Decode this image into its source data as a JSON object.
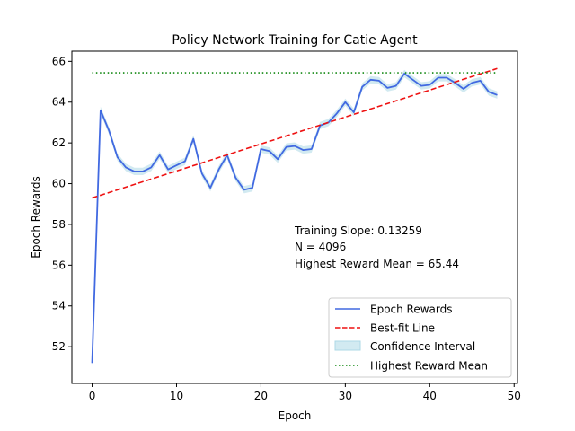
{
  "chart_data": {
    "type": "line",
    "title": "Policy Network Training for Catie Agent",
    "xlabel": "Epoch",
    "ylabel": "Epoch Rewards",
    "xlim": [
      -2.4,
      50.4
    ],
    "ylim": [
      50.2,
      66.5
    ],
    "xticks": [
      0,
      10,
      20,
      30,
      40,
      50
    ],
    "yticks": [
      52,
      54,
      56,
      58,
      60,
      62,
      64,
      66
    ],
    "grid": false,
    "legend_position": "lower right",
    "annotations": [
      "Training Slope: 0.13259",
      "N = 4096",
      "Highest Reward Mean = 65.44"
    ],
    "series": [
      {
        "name": "Epoch Rewards",
        "kind": "line",
        "color": "#4169e1",
        "x": [
          0,
          1,
          2,
          3,
          4,
          5,
          6,
          7,
          8,
          9,
          10,
          11,
          12,
          13,
          14,
          15,
          16,
          17,
          18,
          19,
          20,
          21,
          22,
          23,
          24,
          25,
          26,
          27,
          28,
          29,
          30,
          31,
          32,
          33,
          34,
          35,
          36,
          37,
          38,
          39,
          40,
          41,
          42,
          43,
          44,
          45,
          46,
          47,
          48
        ],
        "y": [
          51.2,
          63.6,
          62.6,
          61.3,
          60.8,
          60.6,
          60.6,
          60.8,
          61.4,
          60.7,
          60.9,
          61.1,
          62.2,
          60.5,
          59.8,
          60.7,
          61.4,
          60.3,
          59.7,
          59.8,
          61.7,
          61.6,
          61.2,
          61.8,
          61.85,
          61.65,
          61.7,
          62.85,
          63.0,
          63.45,
          64.0,
          63.5,
          64.75,
          65.1,
          65.05,
          64.7,
          64.8,
          65.4,
          65.1,
          64.8,
          64.85,
          65.2,
          65.2,
          64.95,
          64.65,
          64.95,
          65.05,
          64.5,
          64.35
        ]
      },
      {
        "name": "Best-fit Line",
        "kind": "dashed",
        "color": "#ee1111",
        "x": [
          0,
          48
        ],
        "y": [
          59.3,
          65.65
        ]
      },
      {
        "name": "Confidence Interval",
        "kind": "band",
        "color": "#add8e6",
        "half_width": 0.18
      },
      {
        "name": "Highest Reward Mean",
        "kind": "dotted",
        "color": "#118811",
        "x": [
          0,
          48
        ],
        "y": [
          65.44,
          65.44
        ]
      }
    ]
  }
}
